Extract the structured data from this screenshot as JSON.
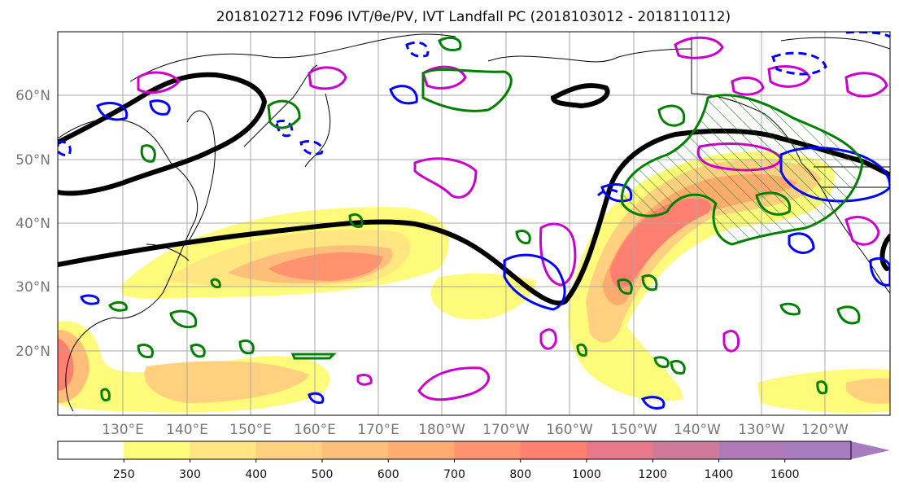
{
  "title": "2018102712 F096 IVT/θe/PV, IVT Landfall PC (2018103012 - 2018110112)",
  "map": {
    "lat_labels": [
      "60°N",
      "50°N",
      "40°N",
      "30°N",
      "20°N"
    ],
    "lon_labels": [
      "130°E",
      "140°E",
      "150°E",
      "160°E",
      "170°E",
      "180°W",
      "170°W",
      "160°W",
      "150°W",
      "140°W",
      "130°W",
      "120°W"
    ]
  },
  "colorbar": {
    "ticks": [
      "250",
      "300",
      "400",
      "500",
      "600",
      "700",
      "800",
      "1000",
      "1200",
      "1400",
      "1600"
    ],
    "colors": [
      "#ffffff",
      "#fffb7a",
      "#ffe680",
      "#ffd080",
      "#ffbe7a",
      "#ffab70",
      "#ff9370",
      "#ff8070",
      "#e8788a",
      "#d07a9a",
      "#b07ab8",
      "#a77dc0"
    ]
  },
  "contour_colors": {
    "height": "#000000",
    "theta_e_pos": "#0000ff",
    "pv": "#008000",
    "ivt_pc": "#cc00cc"
  }
}
